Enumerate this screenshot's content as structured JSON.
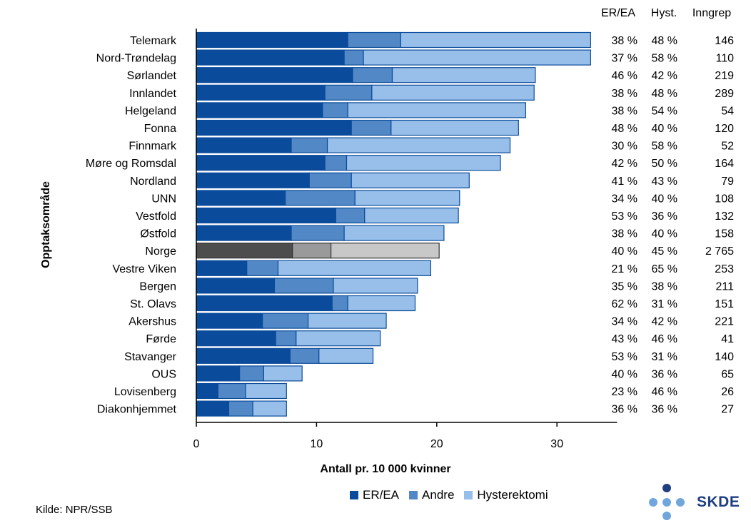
{
  "chart_data": {
    "type": "bar",
    "orientation": "horizontal",
    "stacked": true,
    "xlabel": "Antall pr. 10 000 kvinner",
    "ylabel": "Opptaksområde",
    "xlim": [
      0,
      35
    ],
    "xticks": [
      0,
      10,
      20,
      30
    ],
    "categories": [
      "Telemark",
      "Nord-Trøndelag",
      "Sørlandet",
      "Innlandet",
      "Helgeland",
      "Fonna",
      "Finnmark",
      "Møre og Romsdal",
      "Nordland",
      "UNN",
      "Vestfold",
      "Østfold",
      "Norge",
      "Vestre Viken",
      "Bergen",
      "St. Olavs",
      "Akershus",
      "Førde",
      "Stavanger",
      "OUS",
      "Lovisenberg",
      "Diakonhjemmet"
    ],
    "highlight_category": "Norge",
    "series": [
      {
        "name": "ER/EA",
        "color": "#0a4b9b",
        "highlight_color": "#4d4d4d",
        "values": [
          12.6,
          12.3,
          13.0,
          10.7,
          10.5,
          12.9,
          7.9,
          10.7,
          9.4,
          7.4,
          11.6,
          7.9,
          8.0,
          4.2,
          6.5,
          11.3,
          5.5,
          6.6,
          7.8,
          3.6,
          1.8,
          2.7
        ]
      },
      {
        "name": "Andre",
        "color": "#5188c5",
        "highlight_color": "#9a9a9a",
        "values": [
          4.4,
          1.6,
          3.3,
          3.9,
          2.1,
          3.3,
          3.0,
          1.8,
          3.5,
          5.8,
          2.4,
          4.4,
          3.2,
          2.6,
          4.9,
          1.3,
          3.8,
          1.7,
          2.4,
          2.0,
          2.3,
          2.0
        ]
      },
      {
        "name": "Hysterektomi",
        "color": "#97bfe9",
        "highlight_color": "#c8c8c8",
        "values": [
          15.8,
          18.9,
          11.9,
          13.5,
          14.8,
          10.6,
          15.2,
          12.8,
          9.8,
          8.7,
          7.8,
          8.3,
          9.0,
          12.7,
          7.0,
          5.6,
          6.5,
          7.0,
          4.5,
          3.2,
          3.4,
          2.8
        ]
      }
    ],
    "table": {
      "headers": [
        "ER/EA",
        "Hyst.",
        "Inngrep"
      ],
      "rows": [
        [
          "38 %",
          "48 %",
          "146"
        ],
        [
          "37 %",
          "58 %",
          "110"
        ],
        [
          "46 %",
          "42 %",
          "219"
        ],
        [
          "38 %",
          "48 %",
          "289"
        ],
        [
          "38 %",
          "54 %",
          "54"
        ],
        [
          "48 %",
          "40 %",
          "120"
        ],
        [
          "30 %",
          "58 %",
          "52"
        ],
        [
          "42 %",
          "50 %",
          "164"
        ],
        [
          "41 %",
          "43 %",
          "79"
        ],
        [
          "34 %",
          "40 %",
          "108"
        ],
        [
          "53 %",
          "36 %",
          "132"
        ],
        [
          "38 %",
          "40 %",
          "158"
        ],
        [
          "40 %",
          "45 %",
          "2 765"
        ],
        [
          "21 %",
          "65 %",
          "253"
        ],
        [
          "35 %",
          "38 %",
          "211"
        ],
        [
          "62 %",
          "31 %",
          "151"
        ],
        [
          "34 %",
          "42 %",
          "221"
        ],
        [
          "43 %",
          "46 %",
          "41"
        ],
        [
          "53 %",
          "31 %",
          "140"
        ],
        [
          "40 %",
          "36 %",
          "65"
        ],
        [
          "23 %",
          "46 %",
          "26"
        ],
        [
          "36 %",
          "36 %",
          "27"
        ]
      ]
    }
  },
  "legend": [
    {
      "label": "ER/EA",
      "color": "#0a4b9b"
    },
    {
      "label": "Andre",
      "color": "#5188c5"
    },
    {
      "label": "Hysterektomi",
      "color": "#97bfe9"
    }
  ],
  "source": "Kilde: NPR/SSB",
  "logo": {
    "text": "SKDE",
    "dark_color": "#1f3f82",
    "light_color": "#6fa6dc"
  }
}
